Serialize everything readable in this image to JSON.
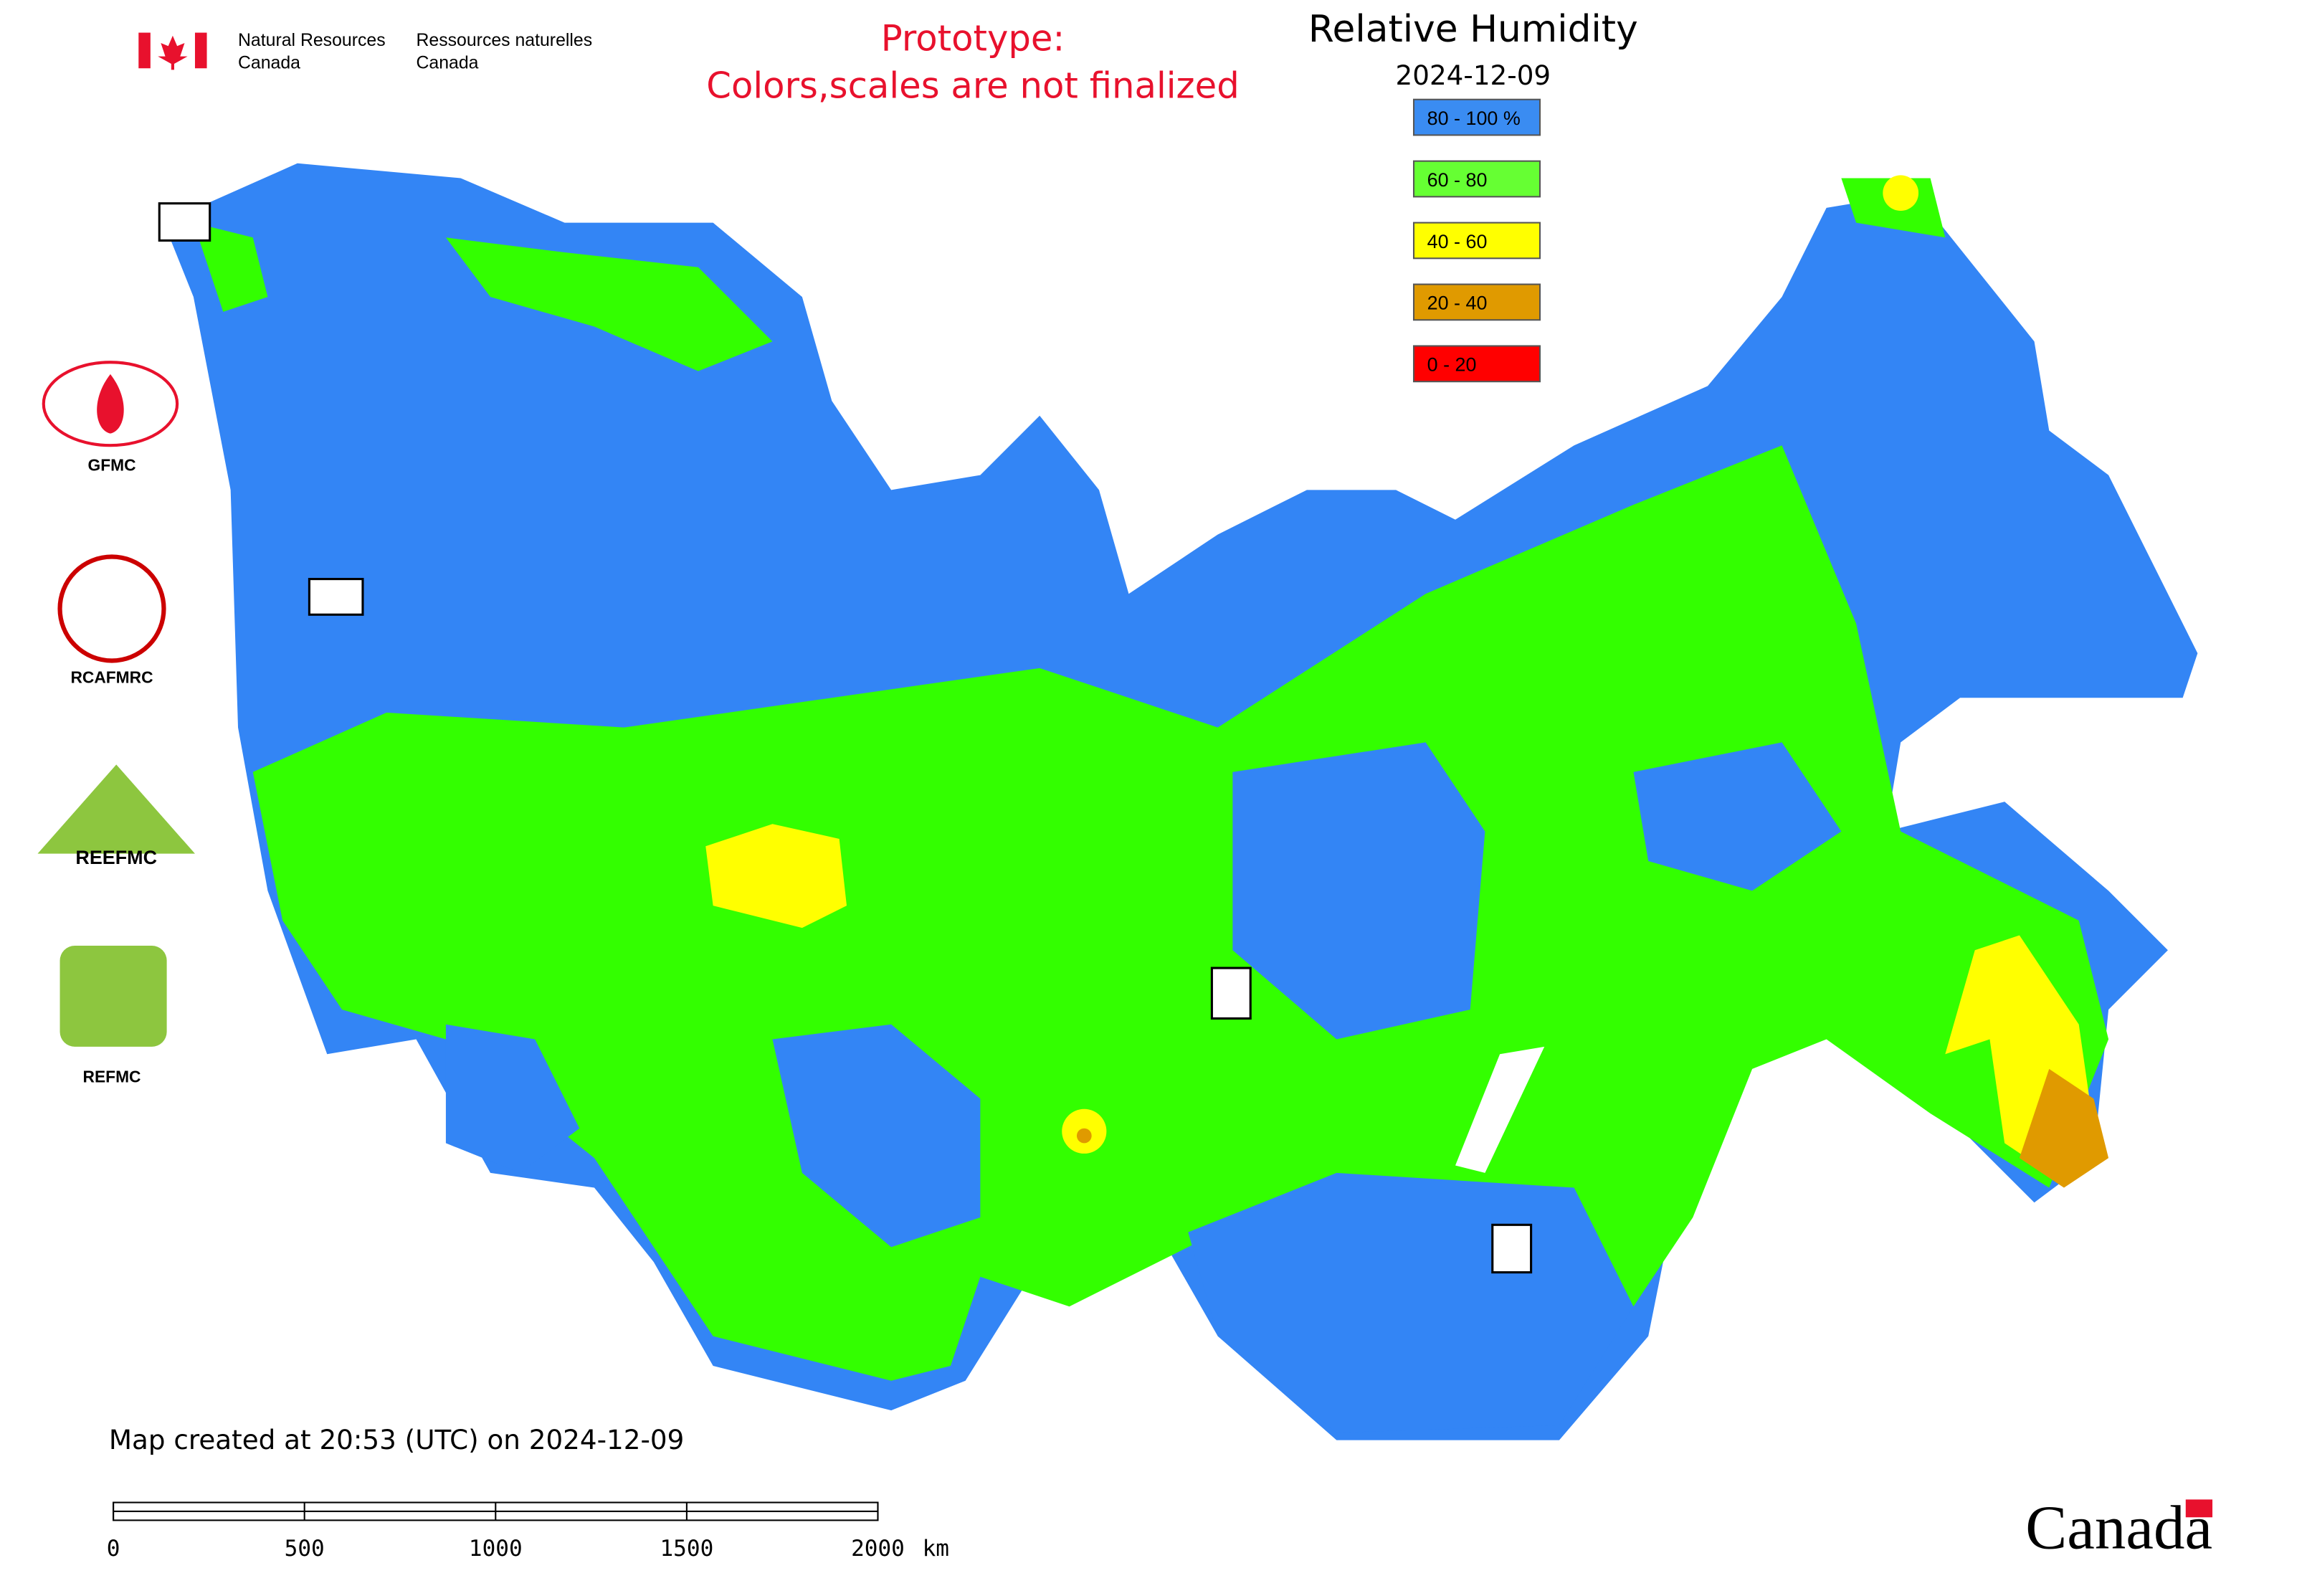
{
  "header": {
    "department_en": [
      "Natural Resources",
      "Canada"
    ],
    "department_fr": [
      "Ressources naturelles",
      "Canada"
    ]
  },
  "notice": [
    "Prototype:",
    "Colors,scales are not finalized"
  ],
  "title": "Relative Humidity",
  "date": "2024-12-09",
  "legend": [
    {
      "label": "80 - 100 %",
      "color": "#3a8cf2"
    },
    {
      "label": "60 - 80",
      "color": "#66ff33"
    },
    {
      "label": "40 - 60",
      "color": "#ffff00"
    },
    {
      "label": "20 - 40",
      "color": "#e09a00"
    },
    {
      "label": "0 - 20",
      "color": "#ff0000"
    }
  ],
  "logos": [
    "GFMC",
    "RCAFMRC",
    "REEFMC",
    "REFMC"
  ],
  "footer": "Map created at 20:53 (UTC) on 2024-12-09",
  "scale": {
    "ticks": [
      0,
      500,
      1000,
      1500,
      2000
    ],
    "unit": "km"
  },
  "wordmark": "Canada"
}
